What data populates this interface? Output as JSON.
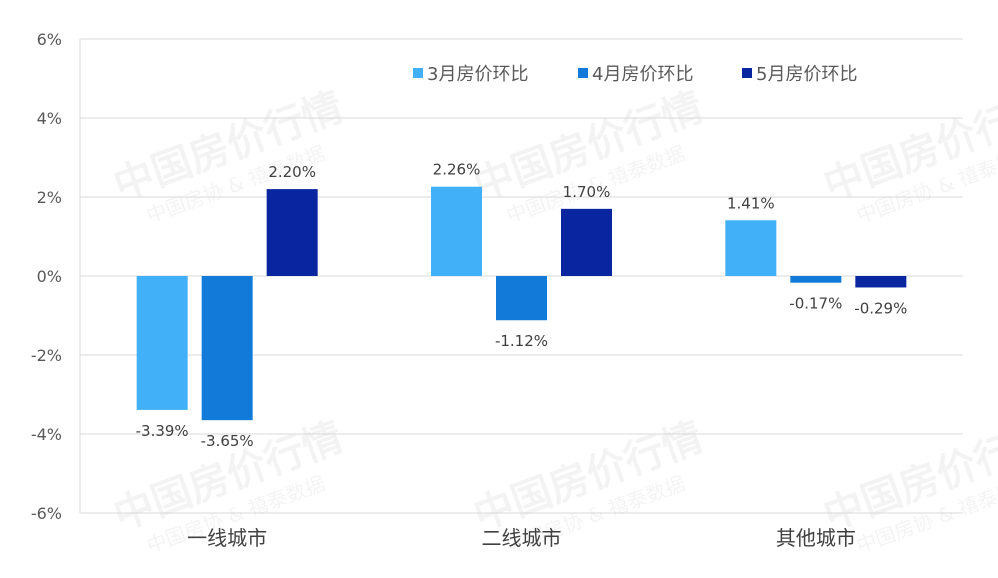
{
  "chart_data": {
    "type": "bar",
    "categories": [
      "一线城市",
      "二线城市",
      "其他城市"
    ],
    "series": [
      {
        "name": "3月房价环比",
        "color": "#41b0f8",
        "values": [
          -3.39,
          2.26,
          1.41
        ],
        "labels": [
          "-3.39%",
          "2.26%",
          "1.41%"
        ]
      },
      {
        "name": "4月房价环比",
        "color": "#127ad9",
        "values": [
          -3.65,
          -1.12,
          -0.17
        ],
        "labels": [
          "-3.65%",
          "-1.12%",
          "-0.17%"
        ]
      },
      {
        "name": "5月房价环比",
        "color": "#0a25a0",
        "values": [
          2.2,
          1.7,
          -0.29
        ],
        "labels": [
          "2.20%",
          "1.70%",
          "-0.29%"
        ]
      }
    ],
    "ylim": [
      -6,
      6
    ],
    "yticks": [
      6,
      4,
      2,
      0,
      -2,
      -4,
      -6
    ],
    "ytick_labels": [
      "6%",
      "4%",
      "2%",
      "0%",
      "-2%",
      "-4%",
      "-6%"
    ],
    "grid": true,
    "legend_position": "top-right"
  },
  "watermark": {
    "title": "中国房价行情",
    "subtitle": "中国房协 & 禧泰数据"
  }
}
